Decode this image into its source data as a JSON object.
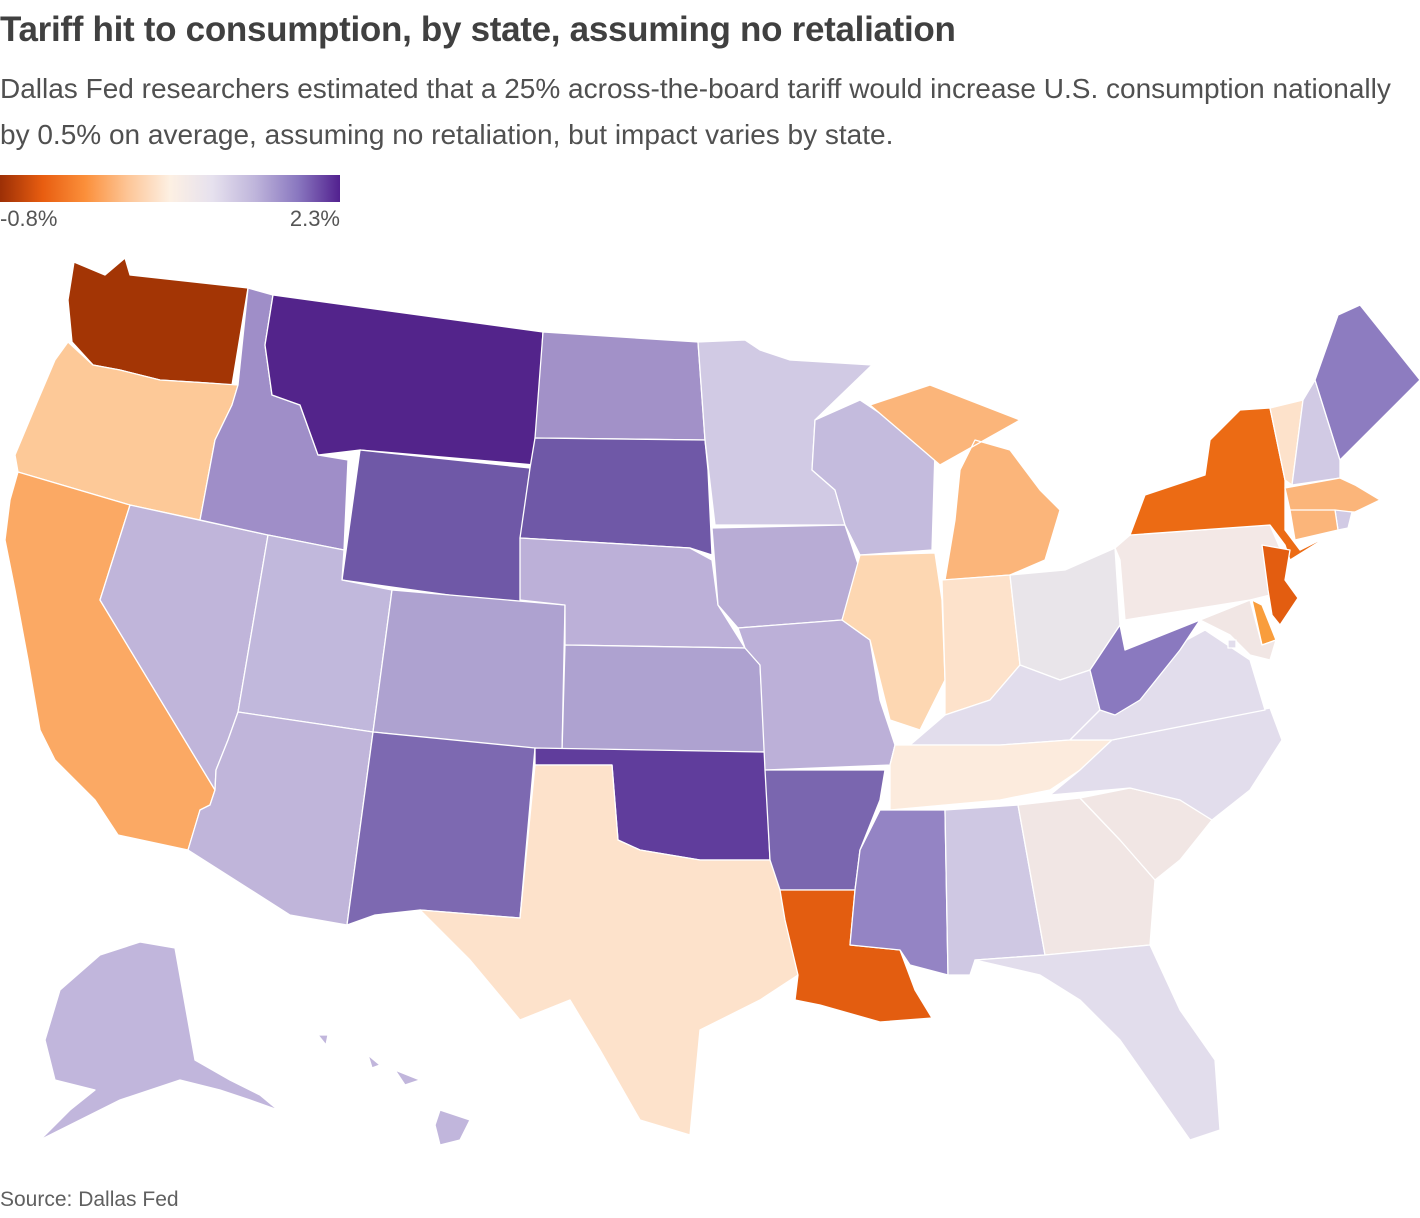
{
  "title": "Tariff hit to consumption, by state, assuming no retaliation",
  "subtitle": "Dallas Fed researchers estimated that a 25% across-the-board tariff would increase U.S. consumption nationally by 0.5% on average, assuming no retaliation, but impact varies by state.",
  "legend": {
    "min_label": "-0.8%",
    "max_label": "2.3%",
    "stops": [
      "#9c2f06",
      "#e85d10",
      "#fb8f3a",
      "#fdc596",
      "#fdf0e3",
      "#e6e1ee",
      "#bfb5db",
      "#8a78c0",
      "#52218f"
    ]
  },
  "source": "Source: Dallas Fed",
  "states": [
    {
      "id": "WA",
      "color": "#a33505"
    },
    {
      "id": "OR",
      "color": "#fdc998"
    },
    {
      "id": "CA",
      "color": "#fba964"
    },
    {
      "id": "NV",
      "color": "#c0b5da"
    },
    {
      "id": "ID",
      "color": "#9f8ec8"
    },
    {
      "id": "MT",
      "color": "#53248b"
    },
    {
      "id": "WY",
      "color": "#6f58a7"
    },
    {
      "id": "UT",
      "color": "#c1b8dc"
    },
    {
      "id": "AZ",
      "color": "#c0b5da"
    },
    {
      "id": "CO",
      "color": "#aea2d0"
    },
    {
      "id": "NM",
      "color": "#7d69b1"
    },
    {
      "id": "ND",
      "color": "#a291c8"
    },
    {
      "id": "SD",
      "color": "#6f58a7"
    },
    {
      "id": "NE",
      "color": "#bcb0d8"
    },
    {
      "id": "KS",
      "color": "#aea2d0"
    },
    {
      "id": "OK",
      "color": "#603d9c"
    },
    {
      "id": "TX",
      "color": "#fde2cb"
    },
    {
      "id": "MN",
      "color": "#d1cae4"
    },
    {
      "id": "IA",
      "color": "#b8acd5"
    },
    {
      "id": "MO",
      "color": "#bcb0d8"
    },
    {
      "id": "AR",
      "color": "#7a66af"
    },
    {
      "id": "LA",
      "color": "#e35d10"
    },
    {
      "id": "WI",
      "color": "#c4bbdd"
    },
    {
      "id": "IL",
      "color": "#fdd7b2"
    },
    {
      "id": "MI",
      "color": "#fbb57a"
    },
    {
      "id": "IN",
      "color": "#fde2cb"
    },
    {
      "id": "OH",
      "color": "#e9e5ea"
    },
    {
      "id": "KY",
      "color": "#e2ddec"
    },
    {
      "id": "TN",
      "color": "#fcebdd"
    },
    {
      "id": "MS",
      "color": "#9484c4"
    },
    {
      "id": "AL",
      "color": "#cfc8e3"
    },
    {
      "id": "GA",
      "color": "#f1e6e4"
    },
    {
      "id": "FL",
      "color": "#e2ddec"
    },
    {
      "id": "SC",
      "color": "#f1e6e4"
    },
    {
      "id": "NC",
      "color": "#e2ddec"
    },
    {
      "id": "VA",
      "color": "#e2ddec"
    },
    {
      "id": "WV",
      "color": "#8a79bf"
    },
    {
      "id": "PA",
      "color": "#f3e8e6"
    },
    {
      "id": "NY",
      "color": "#ec6b14"
    },
    {
      "id": "VT",
      "color": "#fde2cb"
    },
    {
      "id": "NH",
      "color": "#d1cae4"
    },
    {
      "id": "ME",
      "color": "#8d7cc0"
    },
    {
      "id": "MA",
      "color": "#fbb57a"
    },
    {
      "id": "RI",
      "color": "#d1cae4"
    },
    {
      "id": "CT",
      "color": "#fbb57a"
    },
    {
      "id": "NJ",
      "color": "#e35d10"
    },
    {
      "id": "DE",
      "color": "#f99d3c"
    },
    {
      "id": "MD",
      "color": "#f1e6e4"
    },
    {
      "id": "DC",
      "color": "#e2ddec"
    },
    {
      "id": "AK",
      "color": "#c1b6dc"
    },
    {
      "id": "HI",
      "color": "#c1b6dc"
    }
  ]
}
